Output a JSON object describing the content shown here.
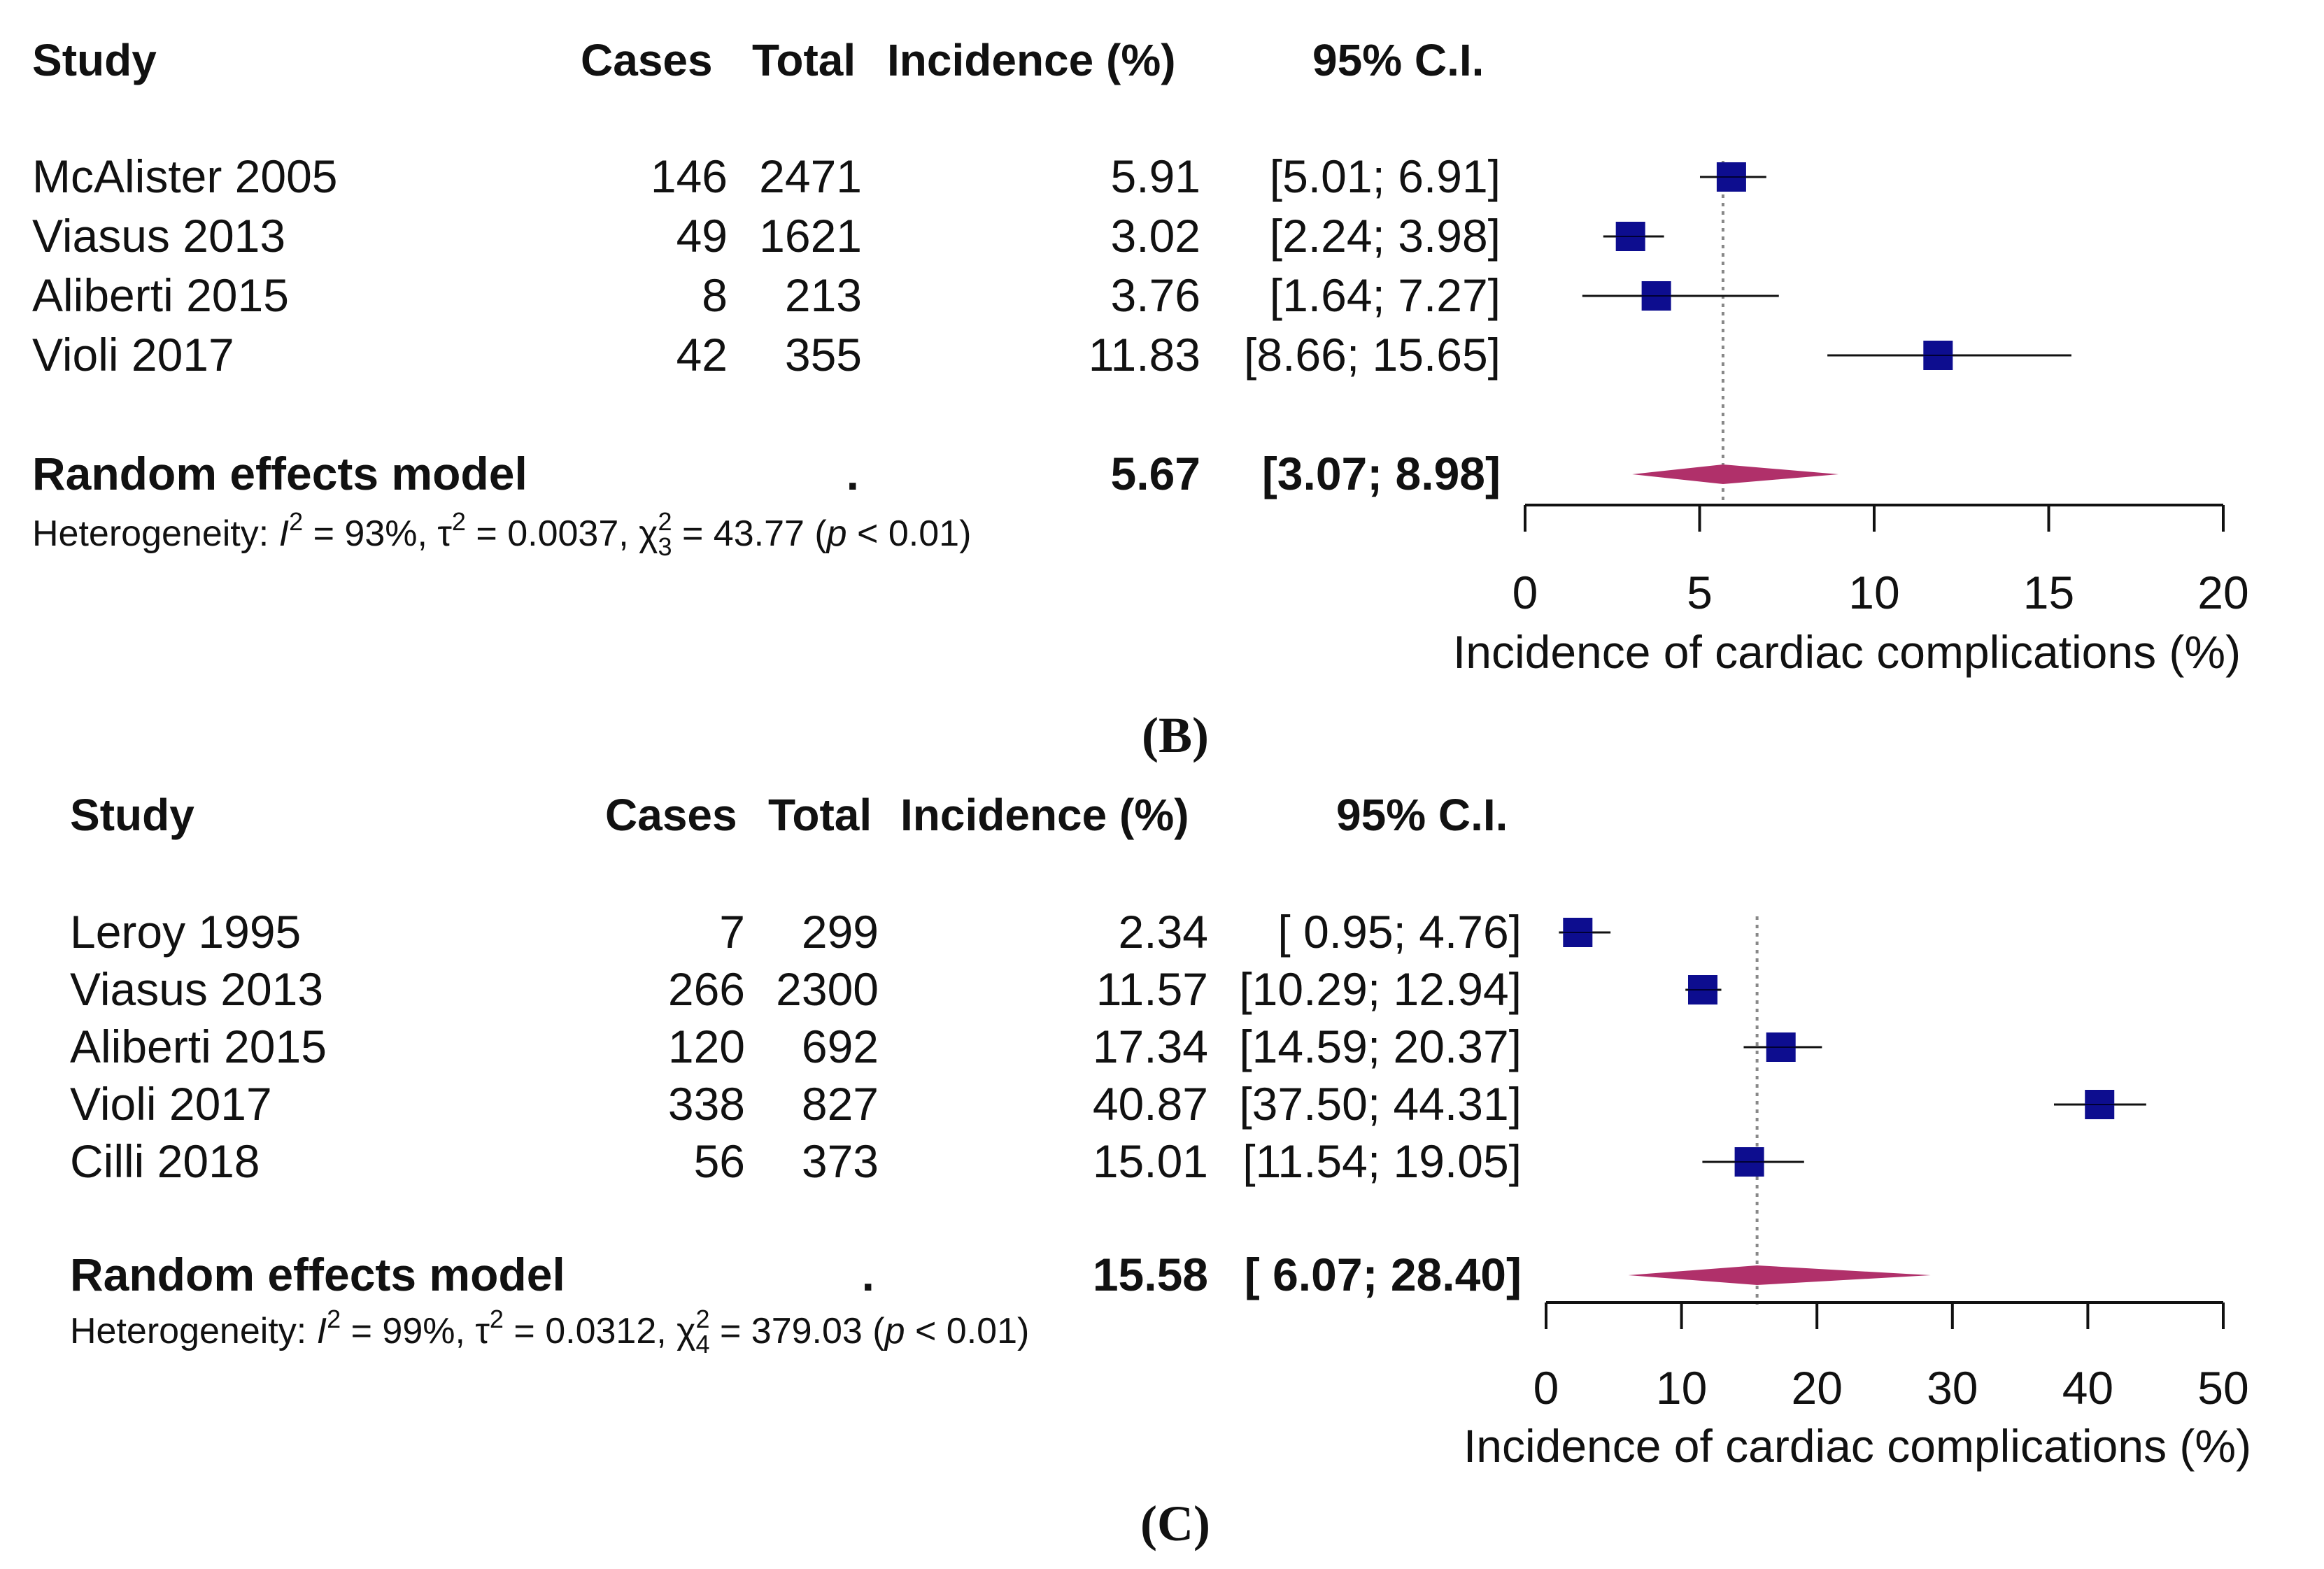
{
  "colors": {
    "square": "#0d0d8f",
    "diamond": "#b0306a",
    "text": "#111111",
    "line": "#111111",
    "refline": "#888888"
  },
  "headers": {
    "study": "Study",
    "cases": "Cases",
    "total": "Total",
    "incidence": "Incidence (%)",
    "ci": "95% C.I."
  },
  "chart_data": [
    {
      "type": "forest",
      "panel_label": "(B)",
      "xlabel": "Incidence of cardiac complications (%)",
      "xlim": [
        0,
        20
      ],
      "xticks": [
        "0",
        "5",
        "10",
        "15",
        "20"
      ],
      "studies": [
        {
          "name": "McAlister 2005",
          "cases": "146",
          "total": "2471",
          "incidence": "5.91",
          "ci": "[5.01;  6.91]",
          "est": 5.91,
          "lo": 5.01,
          "hi": 6.91
        },
        {
          "name": "Viasus 2013",
          "cases": "49",
          "total": "1621",
          "incidence": "3.02",
          "ci": "[2.24;  3.98]",
          "est": 3.02,
          "lo": 2.24,
          "hi": 3.98
        },
        {
          "name": "Aliberti 2015",
          "cases": "8",
          "total": "213",
          "incidence": "3.76",
          "ci": "[1.64;  7.27]",
          "est": 3.76,
          "lo": 1.64,
          "hi": 7.27
        },
        {
          "name": "Violi 2017",
          "cases": "42",
          "total": "355",
          "incidence": "11.83",
          "ci": "[8.66; 15.65]",
          "est": 11.83,
          "lo": 8.66,
          "hi": 15.65
        }
      ],
      "summary": {
        "name": "Random effects model",
        "cases": ".",
        "incidence": "5.67",
        "ci": "[3.07;  8.98]",
        "est": 5.67,
        "lo": 3.07,
        "hi": 8.98
      },
      "heterogeneity": {
        "prefix": "Heterogeneity: ",
        "i2": "= 93%, ",
        "tau2": "= 0.0037, ",
        "chi_df": "3",
        "chi2": "= 43.77 (",
        "p": " < 0.01)"
      }
    },
    {
      "type": "forest",
      "panel_label": "(C)",
      "xlabel": "Incidence of cardiac complications (%)",
      "xlim": [
        0,
        50
      ],
      "xticks": [
        "0",
        "10",
        "20",
        "30",
        "40",
        "50"
      ],
      "studies": [
        {
          "name": "Leroy 1995",
          "cases": "7",
          "total": "299",
          "incidence": "2.34",
          "ci": "[ 0.95;  4.76]",
          "est": 2.34,
          "lo": 0.95,
          "hi": 4.76
        },
        {
          "name": "Viasus 2013",
          "cases": "266",
          "total": "2300",
          "incidence": "11.57",
          "ci": "[10.29; 12.94]",
          "est": 11.57,
          "lo": 10.29,
          "hi": 12.94
        },
        {
          "name": "Aliberti 2015",
          "cases": "120",
          "total": "692",
          "incidence": "17.34",
          "ci": "[14.59; 20.37]",
          "est": 17.34,
          "lo": 14.59,
          "hi": 20.37
        },
        {
          "name": "Violi 2017",
          "cases": "338",
          "total": "827",
          "incidence": "40.87",
          "ci": "[37.50; 44.31]",
          "est": 40.87,
          "lo": 37.5,
          "hi": 44.31
        },
        {
          "name": "Cilli 2018",
          "cases": "56",
          "total": "373",
          "incidence": "15.01",
          "ci": "[11.54; 19.05]",
          "est": 15.01,
          "lo": 11.54,
          "hi": 19.05
        }
      ],
      "summary": {
        "name": "Random effects model",
        "cases": ".",
        "incidence": "15.58",
        "ci": "[ 6.07; 28.40]",
        "est": 15.58,
        "lo": 6.07,
        "hi": 28.4
      },
      "heterogeneity": {
        "prefix": "Heterogeneity: ",
        "i2": "= 99%, ",
        "tau2": "= 0.0312, ",
        "chi_df": "4",
        "chi2": "= 379.03 (",
        "p": " < 0.01)"
      }
    }
  ]
}
